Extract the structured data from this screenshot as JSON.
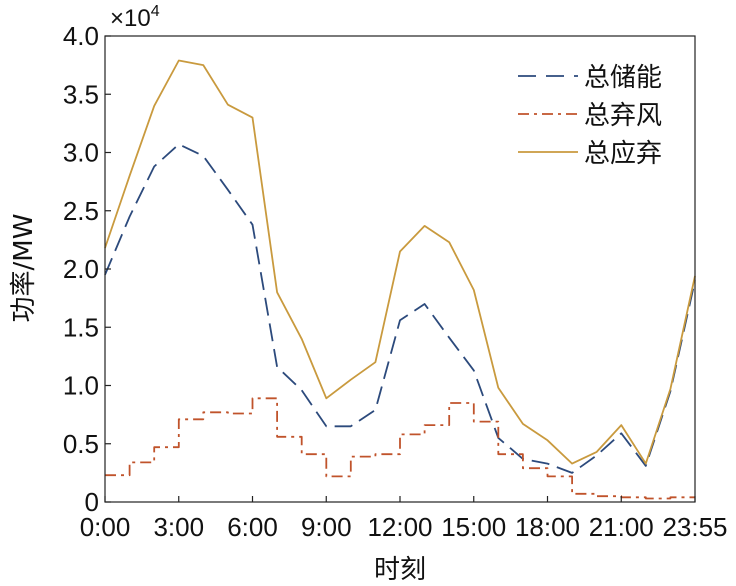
{
  "chart_data": {
    "type": "line",
    "title": "",
    "xlabel": "时刻",
    "ylabel": "功率/MW",
    "y_multiplier": {
      "base": "×10",
      "exponent": "4"
    },
    "ylim": [
      0,
      4.0
    ],
    "xlim": [
      0,
      24
    ],
    "x_ticks": [
      {
        "value": 0,
        "label": "0:00"
      },
      {
        "value": 3,
        "label": "3:00"
      },
      {
        "value": 6,
        "label": "6:00"
      },
      {
        "value": 9,
        "label": "9:00"
      },
      {
        "value": 12,
        "label": "12:00"
      },
      {
        "value": 15,
        "label": "15:00"
      },
      {
        "value": 18,
        "label": "18:00"
      },
      {
        "value": 21,
        "label": "21:00"
      },
      {
        "value": 24,
        "label": "23:55"
      }
    ],
    "y_ticks": [
      {
        "value": 0,
        "label": "0"
      },
      {
        "value": 0.5,
        "label": "0.5"
      },
      {
        "value": 1.0,
        "label": "1.0"
      },
      {
        "value": 1.5,
        "label": "1.5"
      },
      {
        "value": 2.0,
        "label": "2.0"
      },
      {
        "value": 2.5,
        "label": "2.5"
      },
      {
        "value": 3.0,
        "label": "3.0"
      },
      {
        "value": 3.5,
        "label": "3.5"
      },
      {
        "value": 4.0,
        "label": "4.0"
      }
    ],
    "legend_position": "top-right",
    "grid": false,
    "series": [
      {
        "name": "总储能",
        "color": "#2c4a7c",
        "style": "dashed",
        "step": false,
        "x": [
          0,
          1,
          2,
          3,
          4,
          5,
          6,
          7,
          8,
          9,
          10,
          11,
          12,
          13,
          14,
          15,
          16,
          17,
          18,
          19,
          20,
          21,
          22,
          23,
          24
        ],
        "values": [
          1.95,
          2.45,
          2.88,
          3.07,
          2.97,
          2.68,
          2.38,
          1.16,
          0.96,
          0.65,
          0.65,
          0.79,
          1.56,
          1.7,
          1.41,
          1.13,
          0.55,
          0.37,
          0.33,
          0.25,
          0.4,
          0.59,
          0.31,
          0.95,
          1.9
        ]
      },
      {
        "name": "总弃风",
        "color": "#c0532b",
        "style": "dashdot",
        "step": true,
        "x": [
          0,
          1,
          2,
          3,
          4,
          5,
          6,
          7,
          8,
          9,
          10,
          11,
          12,
          13,
          14,
          15,
          16,
          17,
          18,
          19,
          20,
          21,
          22,
          23,
          24
        ],
        "values": [
          0.23,
          0.34,
          0.47,
          0.71,
          0.77,
          0.76,
          0.89,
          0.56,
          0.41,
          0.22,
          0.39,
          0.41,
          0.58,
          0.66,
          0.85,
          0.69,
          0.41,
          0.29,
          0.22,
          0.07,
          0.05,
          0.04,
          0.03,
          0.04,
          0.04
        ]
      },
      {
        "name": "总应弃",
        "color": "#c99a3e",
        "style": "solid",
        "step": false,
        "x": [
          0,
          1,
          2,
          3,
          4,
          5,
          6,
          7,
          8,
          9,
          10,
          11,
          12,
          13,
          14,
          15,
          16,
          17,
          18,
          19,
          20,
          21,
          22,
          23,
          24
        ],
        "values": [
          2.18,
          2.8,
          3.4,
          3.79,
          3.75,
          3.41,
          3.3,
          1.8,
          1.4,
          0.89,
          1.05,
          1.2,
          2.15,
          2.37,
          2.23,
          1.82,
          0.98,
          0.67,
          0.53,
          0.33,
          0.43,
          0.66,
          0.33,
          0.97,
          1.94
        ]
      }
    ]
  }
}
